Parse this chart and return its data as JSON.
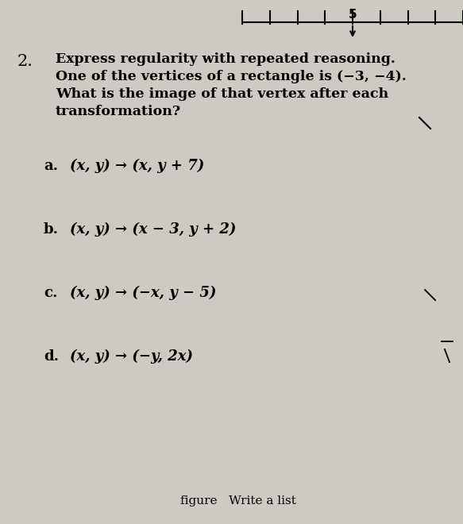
{
  "background_color": "#cdc9c3",
  "number": "2.",
  "title_bold_line": "Express regularity with repeated reasoning.",
  "body_lines": [
    "One of the vertices of a rectangle is (−3, −4).",
    "What is the image of that vertex after each",
    "transformation?"
  ],
  "parts": [
    {
      "label": "a.",
      "text": "(x, y) → (x, y + 7)"
    },
    {
      "label": "b.",
      "text": "(x, y) → (x − 3, y + 2)"
    },
    {
      "label": "c.",
      "text": "(x, y) → (−x, y − 5)"
    },
    {
      "label": "d.",
      "text": "(x, y) → (−y, 2x)"
    }
  ],
  "footer_text": "figure   Write a list",
  "top_label": "5"
}
